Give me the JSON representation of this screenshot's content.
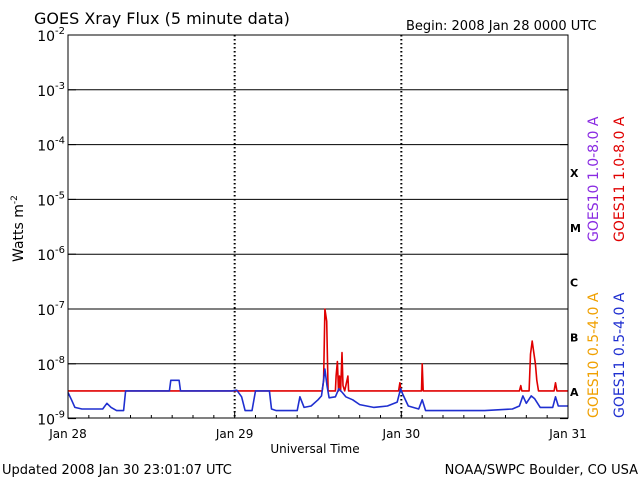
{
  "header": {
    "title": "GOES Xray Flux (5 minute data)",
    "begin": "Begin:  2008 Jan 28 0000 UTC"
  },
  "footer": {
    "updated": "Updated 2008 Jan 30 23:01:07 UTC",
    "credit": "NOAA/SWPC Boulder, CO USA"
  },
  "chart_data": {
    "type": "line",
    "xlabel": "Universal Time",
    "ylabel": "Watts m-2",
    "ylabel_base": "Watts m",
    "ylabel_exp": "-2",
    "y_scale": "log",
    "ylim": [
      7e-10,
      0.01
    ],
    "xlim": [
      0,
      72
    ],
    "x_unit": "hours since 2008 Jan 28 0000 UTC",
    "x_ticks": [
      {
        "x": 0,
        "label": "Jan 28"
      },
      {
        "x": 24,
        "label": "Jan 29"
      },
      {
        "x": 48,
        "label": "Jan 30"
      },
      {
        "x": 72,
        "label": "Jan 31"
      }
    ],
    "y_ticks": [
      {
        "exp": -2,
        "base": "10",
        "sup": "-2"
      },
      {
        "exp": -3,
        "base": "10",
        "sup": "-3"
      },
      {
        "exp": -4,
        "base": "10",
        "sup": "-4"
      },
      {
        "exp": -5,
        "base": "10",
        "sup": "-5"
      },
      {
        "exp": -6,
        "base": "10",
        "sup": "-6"
      },
      {
        "exp": -7,
        "base": "10",
        "sup": "-7"
      },
      {
        "exp": -8,
        "base": "10",
        "sup": "-8"
      },
      {
        "exp": -9,
        "base": "10",
        "sup": "-9"
      }
    ],
    "flare_classes": [
      {
        "label": "X",
        "exp": -4
      },
      {
        "label": "M",
        "exp": -5
      },
      {
        "label": "C",
        "exp": -6
      },
      {
        "label": "B",
        "exp": -7
      },
      {
        "label": "A",
        "exp": -8
      }
    ],
    "legend": [
      {
        "name": "GOES10 1.0-8.0 A",
        "color": "#8a2be2"
      },
      {
        "name": "GOES11 1.0-8.0 A",
        "color": "#e00000"
      },
      {
        "name": "GOES10 0.5-4.0 A",
        "color": "#f0a000"
      },
      {
        "name": "GOES11 0.5-4.0 A",
        "color": "#1f2fd0"
      }
    ],
    "grid": true,
    "series": [
      {
        "name": "GOES11 1.0-8.0 A",
        "color": "#e00000",
        "points": [
          [
            0,
            3.2e-09
          ],
          [
            23.5,
            3.2e-09
          ],
          [
            24.6,
            3.2e-09
          ],
          [
            36.6,
            3.2e-09
          ],
          [
            36.8,
            5e-09
          ],
          [
            37.0,
            1e-07
          ],
          [
            37.25,
            6e-08
          ],
          [
            37.45,
            3.2e-09
          ],
          [
            38.5,
            3.2e-09
          ],
          [
            38.6,
            6e-09
          ],
          [
            38.8,
            1.1e-08
          ],
          [
            38.95,
            3.2e-09
          ],
          [
            39.1,
            6e-09
          ],
          [
            39.25,
            3.2e-09
          ],
          [
            39.45,
            1.6e-08
          ],
          [
            39.6,
            4e-09
          ],
          [
            39.85,
            3.2e-09
          ],
          [
            40.3,
            6e-09
          ],
          [
            40.4,
            3.2e-09
          ],
          [
            47.6,
            3.2e-09
          ],
          [
            47.8,
            4.5e-09
          ],
          [
            47.95,
            3.2e-09
          ],
          [
            50.9,
            3.2e-09
          ],
          [
            51.0,
            1e-08
          ],
          [
            51.15,
            3.2e-09
          ],
          [
            65.0,
            3.2e-09
          ],
          [
            65.2,
            4e-09
          ],
          [
            65.35,
            3.2e-09
          ],
          [
            66.4,
            3.2e-09
          ],
          [
            66.6,
            1.5e-08
          ],
          [
            66.85,
            2.6e-08
          ],
          [
            67.05,
            1.7e-08
          ],
          [
            67.3,
            1e-08
          ],
          [
            67.5,
            5e-09
          ],
          [
            67.75,
            3.2e-09
          ],
          [
            70.0,
            3.2e-09
          ],
          [
            70.2,
            4.5e-09
          ],
          [
            70.4,
            3.2e-09
          ],
          [
            72,
            3.2e-09
          ]
        ]
      },
      {
        "name": "GOES11 0.5-4.0 A",
        "color": "#1f2fd0",
        "points": [
          [
            0,
            3e-09
          ],
          [
            0.5,
            2.2e-09
          ],
          [
            1.0,
            1.6e-09
          ],
          [
            2.0,
            1.5e-09
          ],
          [
            3.5,
            1.5e-09
          ],
          [
            5.0,
            1.5e-09
          ],
          [
            5.6,
            1.9e-09
          ],
          [
            6.2,
            1.6e-09
          ],
          [
            7.0,
            1.4e-09
          ],
          [
            8.0,
            1.4e-09
          ],
          [
            8.3,
            3.2e-09
          ],
          [
            14.6,
            3.2e-09
          ],
          [
            14.8,
            5e-09
          ],
          [
            16.0,
            5e-09
          ],
          [
            16.2,
            3.2e-09
          ],
          [
            23.6,
            3.2e-09
          ],
          [
            24.3,
            3.3e-09
          ],
          [
            25.0,
            2.5e-09
          ],
          [
            25.5,
            1.4e-09
          ],
          [
            26.5,
            1.4e-09
          ],
          [
            27.0,
            3.2e-09
          ],
          [
            29.0,
            3.2e-09
          ],
          [
            29.3,
            1.5e-09
          ],
          [
            30.0,
            1.4e-09
          ],
          [
            33.0,
            1.4e-09
          ],
          [
            33.4,
            2.5e-09
          ],
          [
            34.0,
            1.6e-09
          ],
          [
            35.0,
            1.7e-09
          ],
          [
            36.0,
            2.2e-09
          ],
          [
            36.5,
            2.6e-09
          ],
          [
            36.8,
            5e-09
          ],
          [
            37.0,
            8e-09
          ],
          [
            37.3,
            4e-09
          ],
          [
            37.6,
            2.4e-09
          ],
          [
            38.5,
            2.5e-09
          ],
          [
            39.0,
            3.5e-09
          ],
          [
            39.5,
            3e-09
          ],
          [
            40.0,
            2.5e-09
          ],
          [
            41.0,
            2.2e-09
          ],
          [
            42.0,
            1.8e-09
          ],
          [
            44.0,
            1.6e-09
          ],
          [
            46.0,
            1.7e-09
          ],
          [
            47.4,
            2e-09
          ],
          [
            47.9,
            3.5e-09
          ],
          [
            48.2,
            2.8e-09
          ],
          [
            49.0,
            1.7e-09
          ],
          [
            50.5,
            1.5e-09
          ],
          [
            51.0,
            2.2e-09
          ],
          [
            51.5,
            1.4e-09
          ],
          [
            55.0,
            1.4e-09
          ],
          [
            60.0,
            1.4e-09
          ],
          [
            64.0,
            1.5e-09
          ],
          [
            65.0,
            1.7e-09
          ],
          [
            65.5,
            2.6e-09
          ],
          [
            66.0,
            1.9e-09
          ],
          [
            66.7,
            2.6e-09
          ],
          [
            67.2,
            2.3e-09
          ],
          [
            68.0,
            1.6e-09
          ],
          [
            69.8,
            1.6e-09
          ],
          [
            70.2,
            2.5e-09
          ],
          [
            70.6,
            1.7e-09
          ],
          [
            72,
            1.7e-09
          ]
        ]
      }
    ]
  }
}
